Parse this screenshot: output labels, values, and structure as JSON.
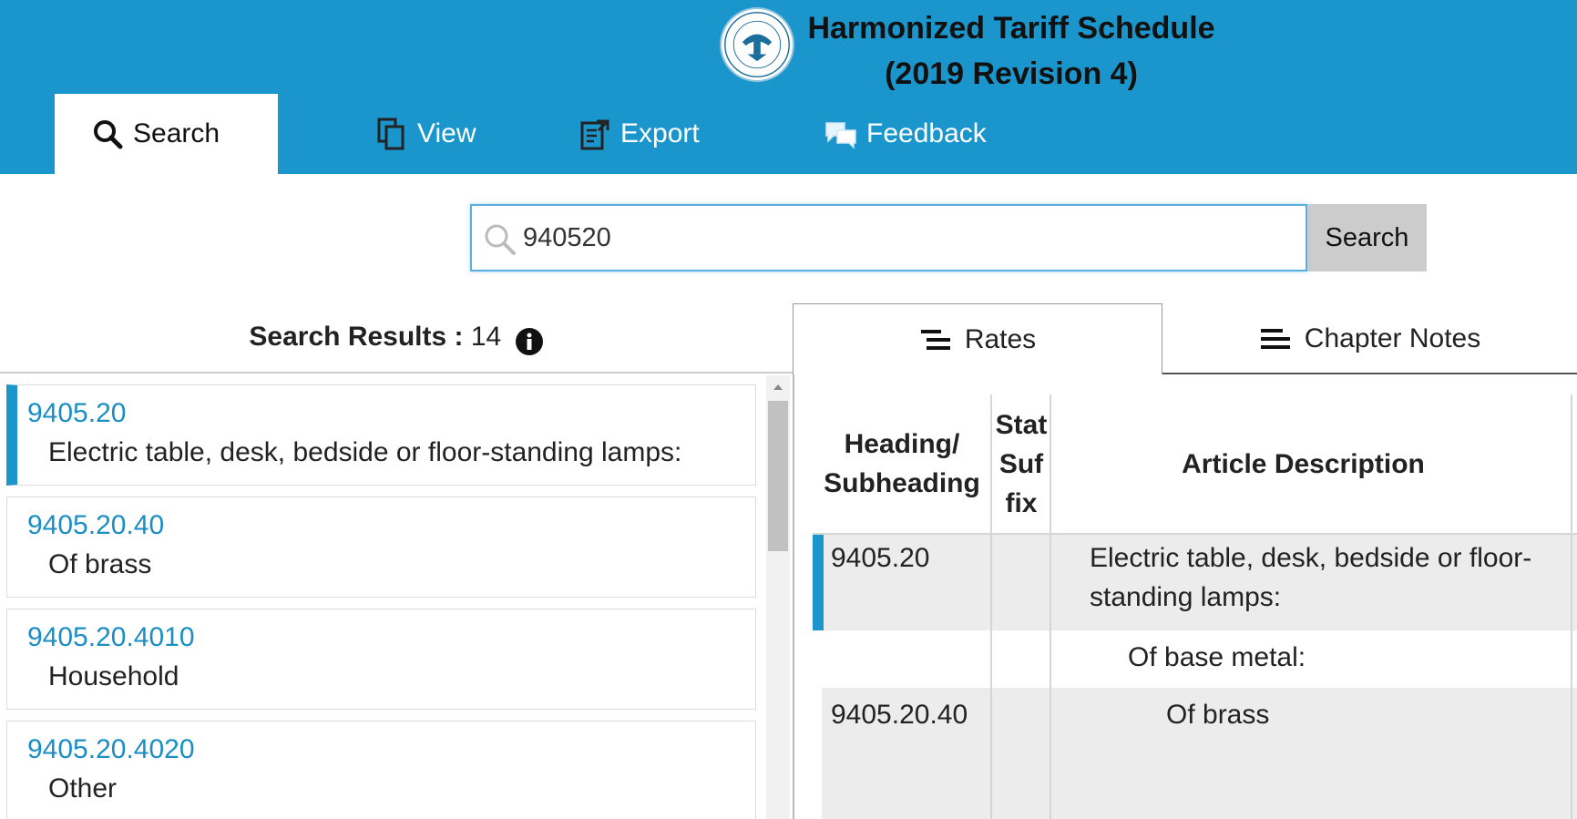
{
  "app": {
    "title_line1": "Harmonized Tariff Schedule",
    "title_line2": "(2019 Revision 4)",
    "seal_icon": "usitc-seal-icon"
  },
  "nav": {
    "tabs": [
      {
        "label": "Search",
        "icon": "search-icon",
        "active": true
      },
      {
        "label": "View",
        "icon": "copy-icon",
        "active": false
      },
      {
        "label": "Export",
        "icon": "export-icon",
        "active": false
      },
      {
        "label": "Feedback",
        "icon": "comments-icon",
        "active": false
      }
    ]
  },
  "search": {
    "value": "940520",
    "button_label": "Search"
  },
  "results": {
    "label": "Search Results :",
    "count": "14",
    "items": [
      {
        "code": "9405.20",
        "desc": "Electric table, desk, bedside or floor-standing lamps:"
      },
      {
        "code": "9405.20.40",
        "desc": "Of brass"
      },
      {
        "code": "9405.20.4010",
        "desc": "Household"
      },
      {
        "code": "9405.20.4020",
        "desc": "Other"
      }
    ]
  },
  "detail": {
    "tabs": [
      {
        "label": "Rates",
        "icon": "list-icon"
      },
      {
        "label": "Chapter Notes",
        "icon": "menu-icon"
      }
    ],
    "columns": {
      "heading_line1": "Heading/",
      "heading_line2": "Subheading",
      "stat_line1": "Stat",
      "stat_line2": "Suf",
      "stat_line3": "fix",
      "description": "Article Description"
    },
    "rows": [
      {
        "heading": "9405.20",
        "desc_line1": "Electric table, desk, bedside or floor-",
        "desc_line2": "standing lamps:"
      },
      {
        "heading": "",
        "desc_line1": "Of base metal:"
      },
      {
        "heading": "9405.20.40",
        "desc_line1": "Of brass"
      }
    ]
  },
  "colors": {
    "header_bg": "#1b96cc",
    "link": "#1b8ec5",
    "row_shade": "#ececec"
  }
}
